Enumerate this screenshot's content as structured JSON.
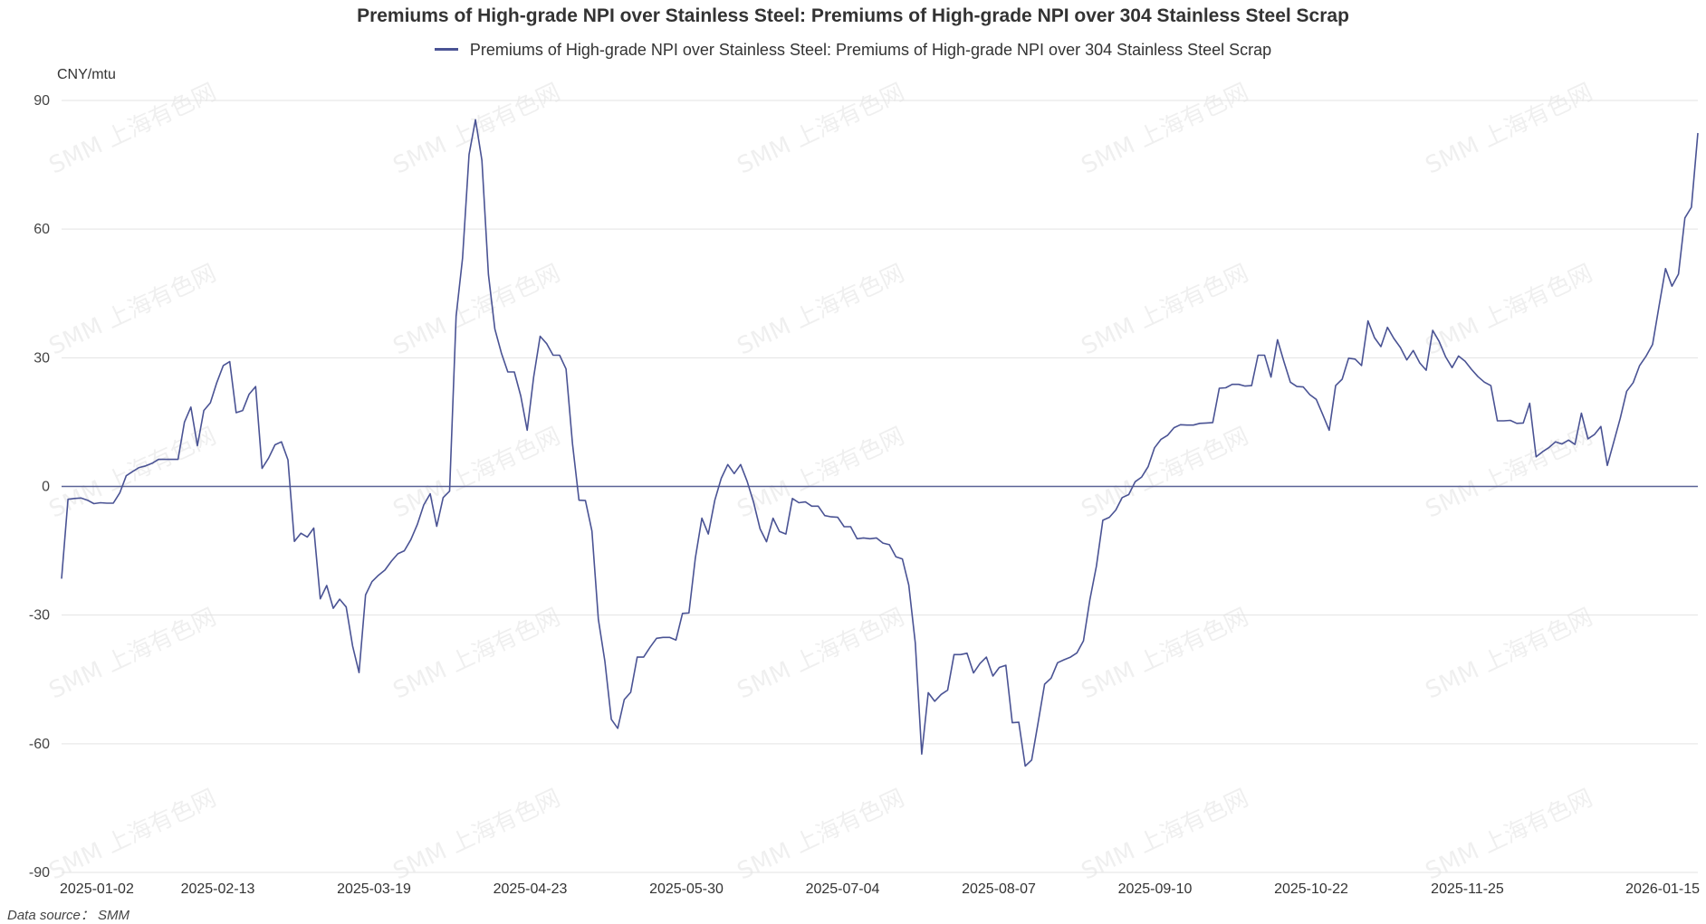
{
  "chart_data": {
    "type": "line",
    "title": "Premiums of High-grade NPI over Stainless Steel: Premiums of High-grade NPI over 304 Stainless Steel Scrap",
    "ylabel": "CNY/mtu",
    "ylim": [
      -90,
      90
    ],
    "yticks": [
      -90,
      -60,
      -30,
      0,
      30,
      60,
      90
    ],
    "x_tick_labels": [
      "2025-01-02",
      "2025-02-13",
      "2025-03-19",
      "2025-04-23",
      "2025-05-30",
      "2025-07-04",
      "2025-08-07",
      "2025-09-10",
      "2025-10-22",
      "2025-11-25",
      "2026-01-15"
    ],
    "grid": true,
    "legend": "top-center",
    "series": [
      {
        "name": "Premiums of High-grade NPI over Stainless Steel: Premiums of High-grade NPI over 304 Stainless Steel Scrap",
        "color": "#4a5394",
        "values": [
          -21.5,
          -3,
          -2.8,
          -2.7,
          -3.2,
          -4,
          -3.8,
          -3.9,
          -3.9,
          -1.5,
          2.5,
          3.5,
          4.4,
          4.8,
          5.4,
          6.3,
          6.3,
          6.3,
          6.3,
          15,
          18.5,
          9.5,
          17.7,
          19.5,
          24.2,
          28.2,
          29.1,
          17.2,
          17.7,
          21.5,
          23.3,
          4.2,
          6.6,
          9.7,
          10.4,
          6.2,
          -12.8,
          -10.9,
          -11.8,
          -9.7,
          -26.2,
          -23.1,
          -28.4,
          -26.3,
          -28.1,
          -37.2,
          -43.4,
          -25.3,
          -22.2,
          -20.7,
          -19.5,
          -17.4,
          -15.7,
          -15,
          -12.4,
          -8.9,
          -4.3,
          -1.7,
          -9.3,
          -2.6,
          -1.1,
          39.7,
          53.2,
          77.4,
          85.5,
          76,
          49.4,
          36.7,
          31.1,
          26.7,
          26.7,
          21.1,
          13.1,
          25.6,
          35,
          33.3,
          30.6,
          30.6,
          27.4,
          10,
          -3.2,
          -3.3,
          -10.4,
          -31,
          -40.8,
          -54.3,
          -56.4,
          -49.7,
          -48,
          -39.8,
          -39.8,
          -37.5,
          -35.4,
          -35.2,
          -35.2,
          -35.8,
          -29.6,
          -29.5,
          -16.7,
          -7.4,
          -11.1,
          -3.2,
          1.9,
          5.1,
          3,
          5.1,
          1.2,
          -3.7,
          -9.9,
          -12.9,
          -7.4,
          -10.5,
          -11.1,
          -2.8,
          -3.8,
          -3.6,
          -4.6,
          -4.6,
          -6.8,
          -7.1,
          -7.2,
          -9.4,
          -9.4,
          -12.2,
          -12,
          -12.2,
          -12,
          -13.2,
          -13.6,
          -16.4,
          -16.9,
          -23,
          -36.5,
          -62.4,
          -48.1,
          -50.1,
          -48.5,
          -47.5,
          -39.2,
          -39.2,
          -38.9,
          -43.5,
          -41.3,
          -39.8,
          -44.2,
          -42.2,
          -41.7,
          -55.1,
          -55,
          -65.2,
          -63.8,
          -55,
          -46.1,
          -44.7,
          -41.1,
          -40.4,
          -39.8,
          -38.8,
          -36,
          -26.4,
          -18.6,
          -7.9,
          -7.2,
          -5.5,
          -2.6,
          -1.9,
          1.1,
          2.2,
          4.6,
          9,
          11,
          11.9,
          13.7,
          14.4,
          14.3,
          14.3,
          14.7,
          14.8,
          14.9,
          22.9,
          23,
          23.8,
          23.8,
          23.4,
          23.5,
          30.6,
          30.6,
          25.5,
          34.2,
          29.1,
          24.3,
          23.3,
          23.2,
          21.4,
          20.3,
          16.8,
          13.1,
          23.5,
          25,
          29.9,
          29.7,
          28.2,
          38.6,
          34.7,
          32.6,
          37.1,
          34.5,
          32.4,
          29.5,
          31.7,
          28.8,
          27.1,
          36.4,
          33.8,
          30.2,
          27.7,
          30.4,
          29.2,
          27.3,
          25.6,
          24.3,
          23.5,
          15.3,
          15.3,
          15.4,
          14.7,
          14.8,
          19.4,
          6.9,
          8.1,
          9.1,
          10.4,
          9.9,
          10.8,
          9.8,
          17.1,
          11.1,
          12.1,
          14,
          4.9,
          10.4,
          15.9,
          22.2,
          24.2,
          28.2,
          30.4,
          33.1,
          42,
          50.8,
          46.7,
          49.5,
          62.6,
          65.1,
          82.4
        ]
      }
    ]
  },
  "source_label": "Data source：",
  "source_value": "SMM",
  "watermark_text": "SMM 上海有色网"
}
